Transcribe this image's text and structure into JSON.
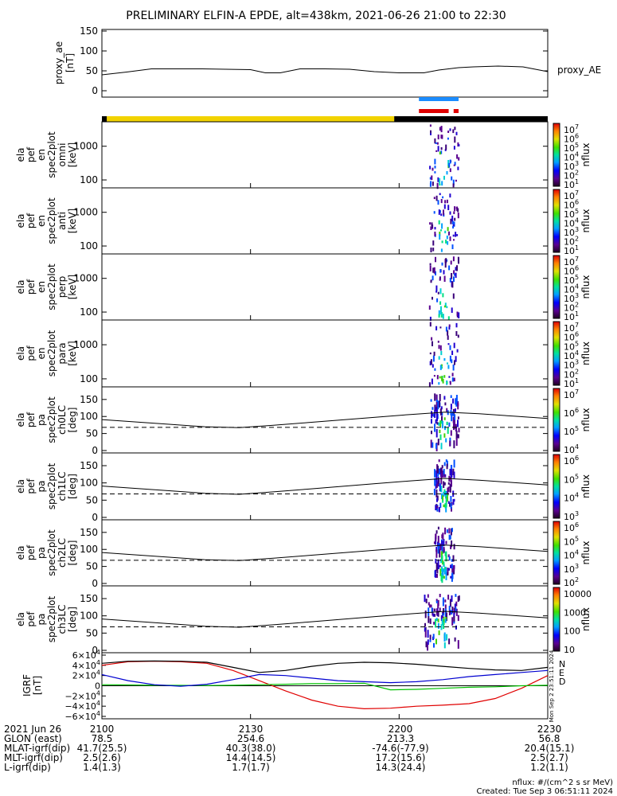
{
  "title": "PRELIMINARY ELFIN-A EPDE, alt=438km, 2021-06-26 21:00 to 22:30",
  "colors": {
    "yellow": "#f2d300",
    "black": "#000000",
    "blue": "#1a8cff",
    "red": "#e00000",
    "green": "#00c000",
    "grf_blue": "#0000d0"
  },
  "chart_data": [
    {
      "type": "line",
      "name": "proxy_ae",
      "ylabel_lines": [
        "proxy_ae",
        "[nT]"
      ],
      "series_label": "proxy_AE",
      "y_ticks": [
        "150",
        "100",
        "50",
        "0"
      ],
      "ylim": [
        0,
        150
      ],
      "x": [
        "21:00",
        "21:05",
        "21:10",
        "21:15",
        "21:20",
        "21:25",
        "21:30",
        "21:33",
        "21:36",
        "21:40",
        "21:45",
        "21:50",
        "21:55",
        "22:00",
        "22:05",
        "22:08",
        "22:12",
        "22:15",
        "22:20",
        "22:25",
        "22:30"
      ],
      "values": [
        40,
        47,
        55,
        55,
        55,
        54,
        53,
        45,
        45,
        55,
        55,
        54,
        48,
        45,
        45,
        52,
        58,
        60,
        62,
        60,
        48
      ]
    },
    {
      "type": "timeline",
      "name": "status-bars",
      "upper_blue_bar": [
        "22:04",
        "22:12"
      ],
      "lower_red_bars": [
        [
          "22:04",
          "22:10"
        ],
        [
          "22:11",
          "22:12"
        ]
      ],
      "yellow_band": [
        "21:01",
        "21:59"
      ],
      "black_band": [
        [
          "21:00",
          "21:01"
        ],
        [
          "21:59",
          "22:30"
        ]
      ]
    },
    {
      "type": "heatmap",
      "name": "omni",
      "ylabel_lines": [
        "ela",
        "pef",
        "en",
        "spec2plot",
        "omni",
        "[keV]"
      ],
      "y_ticks": [
        "1000",
        "100"
      ],
      "colorbar_ticks": [
        "10^7",
        "10^6",
        "10^5",
        "10^4",
        "10^3",
        "10^2",
        "10^1"
      ],
      "colorbar_label": "nflux",
      "active_interval": [
        "22:06",
        "22:12"
      ]
    },
    {
      "type": "heatmap",
      "name": "anti",
      "ylabel_lines": [
        "ela",
        "pef",
        "en",
        "spec2plot",
        "anti",
        "[keV]"
      ],
      "y_ticks": [
        "1000",
        "100"
      ],
      "colorbar_ticks": [
        "10^7",
        "10^6",
        "10^5",
        "10^4",
        "10^3",
        "10^2",
        "10^1"
      ],
      "colorbar_label": "nflux",
      "active_interval": [
        "22:06",
        "22:12"
      ]
    },
    {
      "type": "heatmap",
      "name": "perp",
      "ylabel_lines": [
        "ela",
        "pef",
        "en",
        "spec2plot",
        "perp",
        "[keV]"
      ],
      "y_ticks": [
        "1000",
        "100"
      ],
      "colorbar_ticks": [
        "10^7",
        "10^6",
        "10^5",
        "10^4",
        "10^3",
        "10^2",
        "10^1"
      ],
      "colorbar_label": "nflux",
      "active_interval": [
        "22:06",
        "22:12"
      ]
    },
    {
      "type": "heatmap",
      "name": "para",
      "ylabel_lines": [
        "ela",
        "pef",
        "en",
        "spec2plot",
        "para",
        "[keV]"
      ],
      "y_ticks": [
        "1000",
        "100"
      ],
      "colorbar_ticks": [
        "10^7",
        "10^6",
        "10^5",
        "10^4",
        "10^3",
        "10^2",
        "10^1"
      ],
      "colorbar_label": "nflux",
      "active_interval": [
        "22:06",
        "22:12"
      ]
    },
    {
      "type": "heatmap",
      "name": "ch0LC",
      "ylabel_lines": [
        "ela",
        "pef",
        "pa",
        "spec2plot",
        "ch0LC",
        "[deg]"
      ],
      "y_ticks": [
        "150",
        "100",
        "50",
        "0"
      ],
      "ylim": [
        0,
        180
      ],
      "colorbar_ticks": [
        "10^7",
        "10^6",
        "10^5",
        "10^4"
      ],
      "colorbar_label": "nflux",
      "lc_solid": [
        91,
        84,
        77,
        70,
        67,
        74,
        82,
        90,
        98,
        106,
        113,
        108,
        101,
        94
      ],
      "lc_dashed": 68,
      "active_interval": [
        "22:06",
        "22:12"
      ]
    },
    {
      "type": "heatmap",
      "name": "ch1LC",
      "ylabel_lines": [
        "ela",
        "pef",
        "pa",
        "spec2plot",
        "ch1LC",
        "[deg]"
      ],
      "y_ticks": [
        "150",
        "100",
        "50",
        "0"
      ],
      "ylim": [
        0,
        180
      ],
      "colorbar_ticks": [
        "10^6",
        "10^5",
        "10^4",
        "10^3"
      ],
      "colorbar_label": "nflux",
      "lc_solid": [
        91,
        84,
        77,
        70,
        67,
        74,
        82,
        90,
        98,
        106,
        113,
        108,
        101,
        94
      ],
      "lc_dashed": 68,
      "active_interval": [
        "22:07",
        "22:11"
      ]
    },
    {
      "type": "heatmap",
      "name": "ch2LC",
      "ylabel_lines": [
        "ela",
        "pef",
        "pa",
        "spec2plot",
        "ch2LC",
        "[deg]"
      ],
      "y_ticks": [
        "150",
        "100",
        "50",
        "0"
      ],
      "ylim": [
        0,
        180
      ],
      "colorbar_ticks": [
        "10^6",
        "10^5",
        "10^4",
        "10^3",
        "10^2"
      ],
      "colorbar_label": "nflux",
      "lc_solid": [
        91,
        84,
        77,
        70,
        67,
        74,
        82,
        90,
        98,
        106,
        113,
        108,
        101,
        94
      ],
      "lc_dashed": 68,
      "active_interval": [
        "22:07",
        "22:11"
      ]
    },
    {
      "type": "heatmap",
      "name": "ch3LC",
      "ylabel_lines": [
        "ela",
        "pef",
        "pa",
        "spec2plot",
        "ch3LC",
        "[deg]"
      ],
      "y_ticks": [
        "150",
        "100",
        "50",
        "0"
      ],
      "ylim": [
        0,
        180
      ],
      "colorbar_ticks": [
        "10000",
        "1000",
        "100",
        "10"
      ],
      "colorbar_label": "nflux",
      "lc_solid": [
        91,
        84,
        77,
        70,
        67,
        74,
        82,
        90,
        98,
        106,
        113,
        108,
        101,
        94
      ],
      "lc_dashed": 68,
      "active_interval": [
        "22:05",
        "22:12"
      ]
    },
    {
      "type": "line",
      "name": "igrf",
      "ylabel_lines": [
        "IGRF",
        "[nT]"
      ],
      "y_ticks": [
        "6×10^4",
        "4×10^4",
        "2×10^4",
        "0",
        "−2×10^4",
        "−4×10^4",
        "−6×10^4"
      ],
      "ylim": [
        -60000,
        60000
      ],
      "legend": [
        "N",
        "E",
        "D"
      ],
      "side_note": "Mon Sep  2 23:51:11 2024",
      "series": [
        {
          "name": "N",
          "color": "#e00000",
          "values": [
            40000,
            47000,
            48000,
            47000,
            44000,
            30000,
            10000,
            -10000,
            -28000,
            -40000,
            -45000,
            -44000,
            -40000,
            -38000,
            -35000,
            -25000,
            -5000,
            20000
          ]
        },
        {
          "name": "E",
          "color": "#00c000",
          "values": [
            2000,
            1500,
            1000,
            800,
            500,
            1000,
            2000,
            3000,
            4000,
            4000,
            5000,
            -8000,
            -7000,
            -5000,
            -3000,
            -2000,
            0,
            1000
          ]
        },
        {
          "name": "D",
          "color": "#0000d0",
          "values": [
            22000,
            10000,
            2000,
            -1000,
            3000,
            12000,
            22000,
            20000,
            15000,
            10000,
            8000,
            6000,
            8000,
            12000,
            18000,
            22000,
            26000,
            30000
          ]
        },
        {
          "name": "total",
          "color": "#000000",
          "values": [
            44000,
            48000,
            48500,
            48000,
            46000,
            36000,
            26000,
            30000,
            38000,
            44000,
            46000,
            45000,
            42000,
            38000,
            34000,
            31000,
            30000,
            36000
          ]
        }
      ]
    }
  ],
  "x_axis": {
    "ticks": [
      "2100",
      "2130",
      "2200",
      "2230"
    ],
    "rows": [
      {
        "label": "2021 Jun 26",
        "values": [
          "2100",
          "2130",
          "2200",
          "2230"
        ]
      },
      {
        "label": "GLON (east)",
        "values": [
          "78.5",
          "254.6",
          "213.3",
          "56.8"
        ]
      },
      {
        "label": "MLAT-igrf(dip)",
        "values": [
          "41.7(25.5)",
          "40.3(38.0)",
          "-74.6(-77.9)",
          "20.4(15.1)"
        ]
      },
      {
        "label": "MLT-igrf(dip)",
        "values": [
          "2.5(2.6)",
          "14.4(14.5)",
          "17.2(15.6)",
          "2.5(2.7)"
        ]
      },
      {
        "label": "L-igrf(dip)",
        "values": [
          "1.4(1.3)",
          "1.7(1.7)",
          "14.3(24.4)",
          "1.2(1.1)"
        ]
      }
    ]
  },
  "footer": {
    "units": "nflux: #/(cm^2 s sr MeV)",
    "created": "Created: Tue Sep  3 06:51:11 2024"
  }
}
